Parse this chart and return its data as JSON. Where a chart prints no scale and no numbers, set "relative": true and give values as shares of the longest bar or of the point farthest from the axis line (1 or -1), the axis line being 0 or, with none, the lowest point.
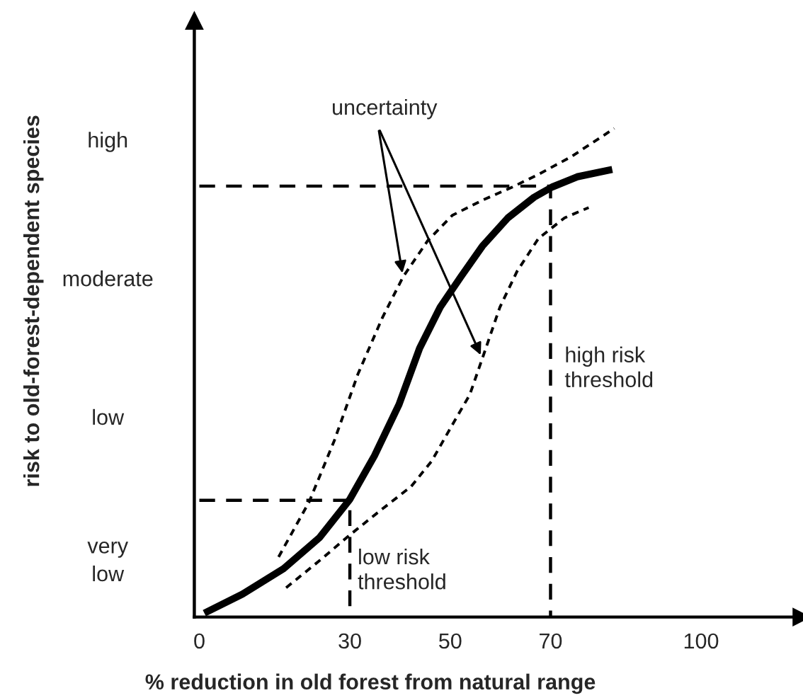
{
  "chart_data": {
    "type": "line",
    "relative": true,
    "xlabel": "% reduction in old forest from natural range",
    "xlim": [
      -1,
      120
    ],
    "xticks": [
      0,
      30,
      50,
      70,
      100
    ],
    "grid": false,
    "legend": false,
    "marker": "none",
    "series": [
      {
        "color": "#000000",
        "line_style": "solid",
        "x": [
          1.0,
          8.6,
          16.8,
          23.9,
          30,
          34.9,
          39.8,
          43.9,
          48.0,
          52.1,
          56.4,
          61.5,
          66.7,
          70.3,
          75.3,
          82.3
        ],
        "values": [
          0.008,
          0.047,
          0.099,
          0.162,
          0.241,
          0.33,
          0.435,
          0.55,
          0.634,
          0.696,
          0.759,
          0.817,
          0.859,
          0.88,
          0.901,
          0.916
        ]
      },
      {
        "color": "#000000",
        "line_style": "dashed",
        "x": [
          15.8,
          21.9,
          26.9,
          31.6,
          36.5,
          40.6,
          45.5,
          50.4,
          56.4,
          62.4,
          67.6,
          74.1,
          82.7
        ],
        "values": [
          0.123,
          0.236,
          0.361,
          0.497,
          0.613,
          0.696,
          0.77,
          0.822,
          0.853,
          0.88,
          0.906,
          0.942,
          1.0
        ]
      },
      {
        "color": "#000000",
        "line_style": "dashed",
        "x": [
          17.3,
          23.9,
          30,
          35.7,
          42.2,
          46.3,
          50.4,
          53.9,
          56.4,
          59.9,
          63.3,
          67.6,
          72.8,
          77.6
        ],
        "values": [
          0.06,
          0.115,
          0.168,
          0.215,
          0.267,
          0.319,
          0.393,
          0.455,
          0.529,
          0.634,
          0.707,
          0.775,
          0.817,
          0.838
        ]
      },
      {
        "color": "#000000",
        "line_style": "dashed",
        "x": [
          0,
          30,
          30
        ],
        "values": [
          0.239,
          0.239,
          0
        ]
      },
      {
        "color": "#000000",
        "line_style": "dashed",
        "x": [
          0,
          70,
          70
        ],
        "values": [
          0.882,
          0.882,
          0
        ]
      }
    ],
    "annotations": [
      "uncertainty",
      "low risk\nthreshold",
      "high risk\nthreshold",
      "high",
      "moderate",
      "low",
      "very\nlow",
      "risk to old-forest-dependent species"
    ]
  }
}
